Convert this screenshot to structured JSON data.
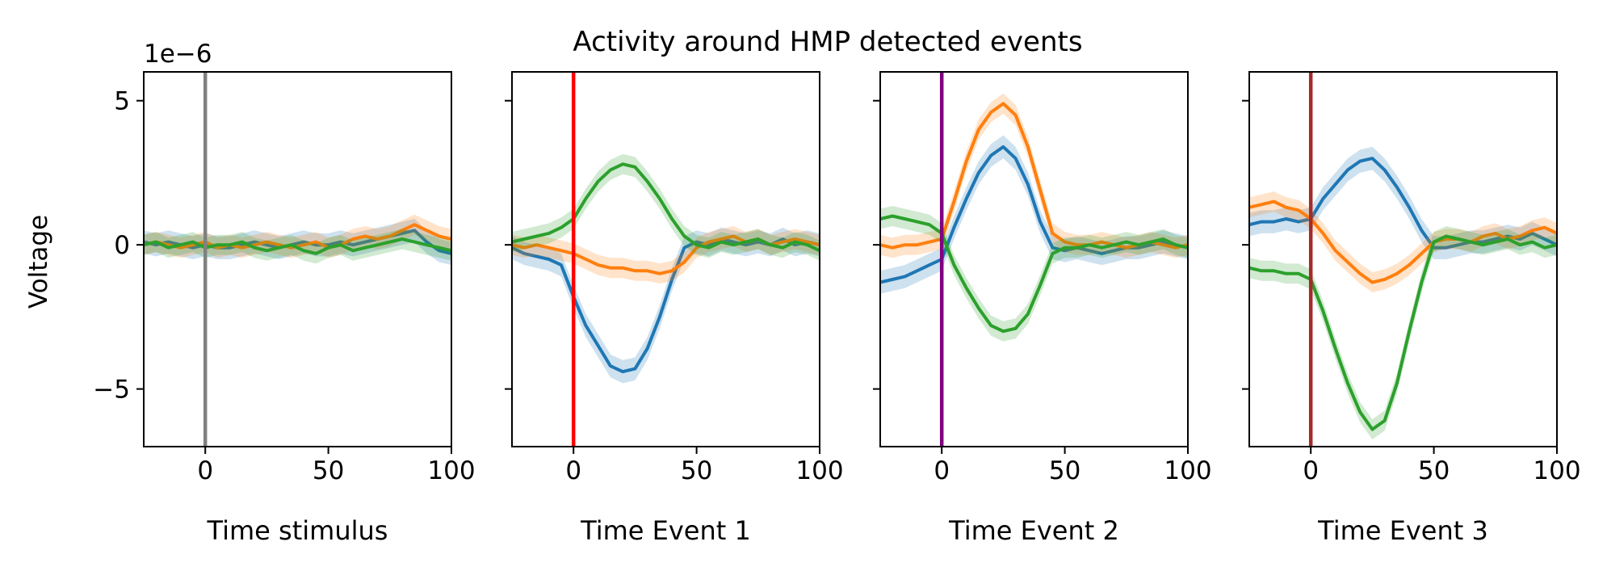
{
  "chart_data": {
    "type": "line",
    "title": "Activity around HMP detected events",
    "ylabel": "Voltage",
    "y_offset_label": "1e−6",
    "ylim": [
      -7,
      6
    ],
    "yticks": [
      -5,
      0,
      5
    ],
    "ytick_labels": [
      "−5",
      "0",
      "5"
    ],
    "xlim": [
      -25,
      100
    ],
    "xticks": [
      0,
      50,
      100
    ],
    "xtick_labels": [
      "0",
      "50",
      "100"
    ],
    "series_colors": [
      "#1f77b4",
      "#ff7f0e",
      "#2ca02c"
    ],
    "x": [
      -25,
      -20,
      -15,
      -10,
      -5,
      0,
      5,
      10,
      15,
      20,
      25,
      30,
      35,
      40,
      45,
      50,
      55,
      60,
      65,
      70,
      75,
      80,
      85,
      90,
      95,
      100
    ],
    "panels": [
      {
        "xlabel": "Time stimulus",
        "event_color": "#808080",
        "series": [
          {
            "values": [
              0.1,
              0.0,
              0.1,
              0.0,
              -0.1,
              0.0,
              -0.1,
              -0.1,
              0.0,
              0.1,
              0.0,
              -0.1,
              0.0,
              0.1,
              0.0,
              0.0,
              0.1,
              0.0,
              0.1,
              0.2,
              0.3,
              0.4,
              0.5,
              0.1,
              -0.2,
              -0.3
            ]
          },
          {
            "values": [
              0.0,
              0.1,
              0.0,
              -0.1,
              0.0,
              0.1,
              -0.1,
              0.0,
              -0.1,
              0.0,
              0.1,
              0.0,
              -0.1,
              0.0,
              0.1,
              -0.1,
              0.0,
              0.2,
              0.3,
              0.2,
              0.3,
              0.5,
              0.7,
              0.5,
              0.3,
              0.2
            ]
          },
          {
            "values": [
              0.0,
              0.1,
              -0.1,
              0.0,
              0.1,
              -0.1,
              0.0,
              0.0,
              0.1,
              -0.1,
              -0.2,
              -0.1,
              0.0,
              -0.2,
              -0.3,
              -0.1,
              0.0,
              -0.2,
              -0.1,
              0.0,
              0.1,
              0.2,
              0.1,
              0.0,
              -0.1,
              -0.2
            ]
          }
        ]
      },
      {
        "xlabel": "Time Event 1",
        "event_color": "#ff0000",
        "series": [
          {
            "values": [
              -0.1,
              -0.3,
              -0.4,
              -0.5,
              -0.7,
              -1.8,
              -2.8,
              -3.5,
              -4.2,
              -4.4,
              -4.3,
              -3.6,
              -2.5,
              -1.2,
              -0.1,
              0.1,
              0.0,
              0.2,
              0.1,
              0.0,
              0.1,
              0.0,
              0.2,
              0.0,
              0.1,
              0.0
            ]
          },
          {
            "values": [
              0.0,
              -0.1,
              0.0,
              -0.1,
              -0.2,
              -0.3,
              -0.5,
              -0.7,
              -0.8,
              -0.8,
              -0.9,
              -0.9,
              -1.0,
              -0.9,
              -0.6,
              -0.1,
              0.1,
              0.2,
              0.3,
              0.1,
              0.2,
              0.0,
              0.1,
              0.2,
              0.1,
              0.0
            ]
          },
          {
            "values": [
              0.1,
              0.2,
              0.3,
              0.4,
              0.6,
              0.9,
              1.6,
              2.2,
              2.6,
              2.8,
              2.7,
              2.2,
              1.6,
              0.9,
              0.3,
              0.0,
              -0.1,
              0.1,
              0.0,
              0.1,
              0.2,
              0.0,
              -0.1,
              0.1,
              0.0,
              -0.2
            ]
          }
        ]
      },
      {
        "xlabel": "Time Event 2",
        "event_color": "#800080",
        "series": [
          {
            "values": [
              -1.3,
              -1.2,
              -1.1,
              -0.9,
              -0.7,
              -0.5,
              0.6,
              1.6,
              2.5,
              3.1,
              3.4,
              3.0,
              2.1,
              0.8,
              -0.1,
              -0.2,
              -0.1,
              -0.2,
              -0.3,
              -0.2,
              -0.1,
              -0.1,
              0.0,
              0.1,
              0.0,
              -0.1
            ]
          },
          {
            "values": [
              0.0,
              -0.1,
              0.0,
              0.0,
              0.1,
              0.2,
              1.5,
              2.9,
              4.0,
              4.6,
              4.9,
              4.5,
              3.4,
              1.9,
              0.4,
              0.1,
              0.0,
              0.0,
              0.1,
              0.0,
              -0.1,
              0.0,
              0.1,
              0.0,
              -0.1,
              0.0
            ]
          },
          {
            "values": [
              0.9,
              1.0,
              0.9,
              0.8,
              0.7,
              0.4,
              -0.7,
              -1.5,
              -2.2,
              -2.8,
              -3.0,
              -2.9,
              -2.4,
              -1.4,
              -0.3,
              -0.1,
              -0.1,
              0.0,
              -0.1,
              0.0,
              0.1,
              0.0,
              0.1,
              0.2,
              0.0,
              -0.1
            ]
          }
        ]
      },
      {
        "xlabel": "Time Event 3",
        "event_color": "#a52a2a",
        "series": [
          {
            "values": [
              0.7,
              0.8,
              0.8,
              0.9,
              0.8,
              0.9,
              1.6,
              2.1,
              2.6,
              2.9,
              3.0,
              2.6,
              2.0,
              1.3,
              0.5,
              -0.1,
              -0.1,
              0.0,
              0.1,
              0.1,
              0.2,
              0.3,
              0.2,
              0.4,
              0.2,
              0.0
            ]
          },
          {
            "values": [
              1.3,
              1.4,
              1.5,
              1.3,
              1.2,
              0.9,
              0.4,
              -0.2,
              -0.6,
              -1.0,
              -1.3,
              -1.2,
              -1.0,
              -0.7,
              -0.3,
              0.1,
              0.2,
              0.2,
              0.1,
              0.3,
              0.4,
              0.2,
              0.3,
              0.5,
              0.6,
              0.4
            ]
          },
          {
            "values": [
              -0.8,
              -0.9,
              -0.9,
              -1.0,
              -1.0,
              -1.2,
              -2.3,
              -3.6,
              -4.8,
              -5.8,
              -6.4,
              -6.1,
              -4.8,
              -3.0,
              -1.3,
              0.1,
              0.3,
              0.2,
              0.1,
              0.0,
              0.1,
              0.2,
              0.0,
              0.1,
              -0.1,
              0.0
            ]
          }
        ]
      }
    ]
  }
}
